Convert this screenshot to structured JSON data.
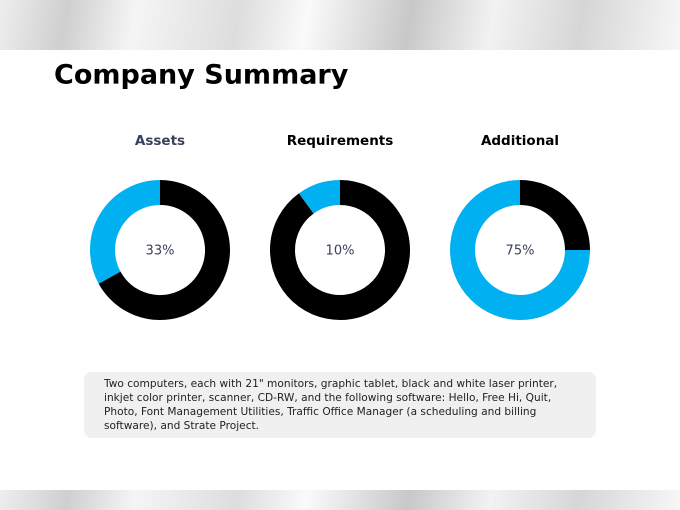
{
  "title": "Company Summary",
  "chart_data": [
    {
      "type": "donut",
      "title": "Assets",
      "values": [
        33,
        67
      ],
      "value_labels": [
        "33%",
        null
      ],
      "colors": [
        "#00b0f0",
        "#000000"
      ]
    },
    {
      "type": "donut",
      "title": "Requirements",
      "values": [
        10,
        90
      ],
      "value_labels": [
        "10%",
        null
      ],
      "colors": [
        "#00b0f0",
        "#000000"
      ]
    },
    {
      "type": "donut",
      "title": "Additional",
      "values": [
        75,
        25
      ],
      "value_labels": [
        "75%",
        null
      ],
      "colors": [
        "#00b0f0",
        "#000000"
      ]
    }
  ],
  "description": "Two computers, each with 21\" monitors, graphic tablet, black and white laser printer, inkjet color printer, scanner, CD-RW, and the following software: Hello, Free Hi, Quit, Photo, Font Management Utilities, Traffic Office Manager (a scheduling and billing software), and Strate Project."
}
